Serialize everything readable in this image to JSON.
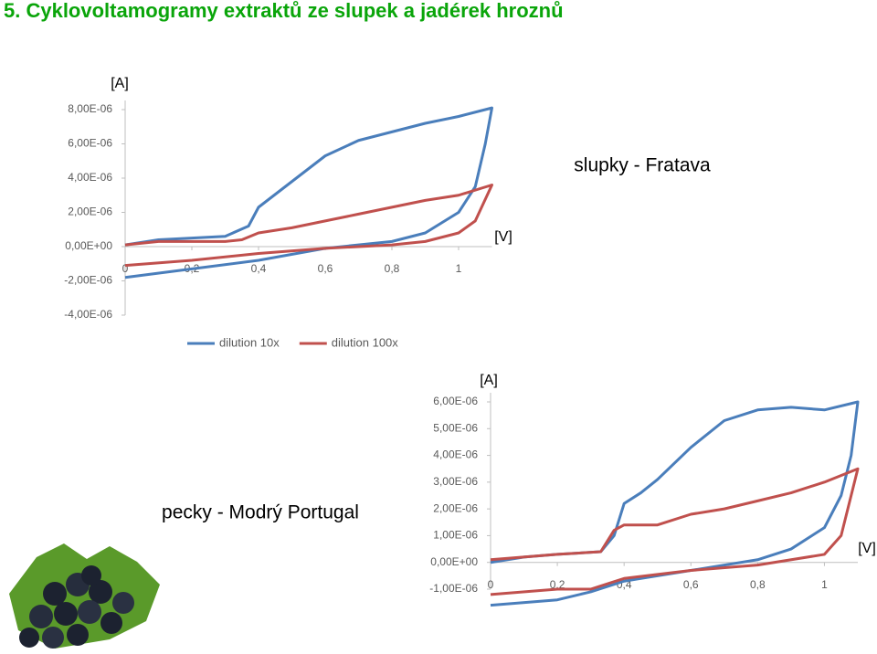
{
  "slide_title": "5. Cyklovoltamogramy extraktů ze slupek a jadérek hroznů",
  "chart_data": [
    {
      "type": "line",
      "title": "slupky - Fratava",
      "y_label": "[A]",
      "x_label": "[V]",
      "xlim": [
        0,
        1.1
      ],
      "ylim": [
        -4e-06,
        8e-06
      ],
      "xticks": [
        0,
        {
          "value": 0.2,
          "label": "0,2"
        },
        {
          "value": 0.4,
          "label": "0,4"
        },
        {
          "value": 0.6,
          "label": "0,6"
        },
        {
          "value": 0.8,
          "label": "0,8"
        },
        1
      ],
      "yticks": [
        {
          "value": 8e-06,
          "label": "8,00E-06"
        },
        {
          "value": 6e-06,
          "label": "6,00E-06"
        },
        {
          "value": 4e-06,
          "label": "4,00E-06"
        },
        {
          "value": 2e-06,
          "label": "2,00E-06"
        },
        {
          "value": 0,
          "label": "0,00E+00"
        },
        {
          "value": -2e-06,
          "label": "-2,00E-06"
        },
        {
          "value": -4e-06,
          "label": "-4,00E-06"
        }
      ],
      "legend": "bottom",
      "series": [
        {
          "name": "dilution 10x",
          "color": "#4a7ebb",
          "x": [
            0,
            0.2,
            0.4,
            0.6,
            0.8,
            0.9,
            1.0,
            1.05,
            1.08,
            1.1,
            1.0,
            0.9,
            0.8,
            0.7,
            0.6,
            0.5,
            0.4,
            0.37,
            0.3,
            0.2,
            0.1,
            0
          ],
          "values": [
            -1.8e-06,
            -1.3e-06,
            -8e-07,
            -1e-07,
            3e-07,
            8e-07,
            2e-06,
            3.5e-06,
            6e-06,
            8.1e-06,
            7.6e-06,
            7.2e-06,
            6.7e-06,
            6.2e-06,
            5.3e-06,
            3.8e-06,
            2.3e-06,
            1.2e-06,
            6e-07,
            5e-07,
            4e-07,
            1e-07
          ]
        },
        {
          "name": "dilution 100x",
          "color": "#c0504d",
          "x": [
            0,
            0.2,
            0.4,
            0.6,
            0.8,
            0.9,
            1.0,
            1.05,
            1.1,
            1.0,
            0.9,
            0.8,
            0.7,
            0.6,
            0.5,
            0.4,
            0.35,
            0.3,
            0.1,
            0
          ],
          "values": [
            -1.1e-06,
            -8e-07,
            -4e-07,
            -1e-07,
            1e-07,
            3e-07,
            8e-07,
            1.5e-06,
            3.6e-06,
            3e-06,
            2.7e-06,
            2.3e-06,
            1.9e-06,
            1.5e-06,
            1.1e-06,
            8e-07,
            4e-07,
            3e-07,
            3e-07,
            1e-07
          ]
        }
      ]
    },
    {
      "type": "line",
      "title": "pecky - Modrý Portugal",
      "y_label": "[A]",
      "x_label": "[V]",
      "xlim": [
        0,
        1.1
      ],
      "ylim": [
        -1e-06,
        6e-06
      ],
      "xticks": [
        0,
        {
          "value": 0.2,
          "label": "0,2"
        },
        {
          "value": 0.4,
          "label": "0,4"
        },
        {
          "value": 0.6,
          "label": "0,6"
        },
        {
          "value": 0.8,
          "label": "0,8"
        },
        1
      ],
      "yticks": [
        {
          "value": 6e-06,
          "label": "6,00E-06"
        },
        {
          "value": 5e-06,
          "label": "5,00E-06"
        },
        {
          "value": 4e-06,
          "label": "4,00E-06"
        },
        {
          "value": 3e-06,
          "label": "3,00E-06"
        },
        {
          "value": 2e-06,
          "label": "2,00E-06"
        },
        {
          "value": 1e-06,
          "label": "1,00E-06"
        },
        {
          "value": 0,
          "label": "0,00E+00"
        },
        {
          "value": -1e-06,
          "label": "-1,00E-06"
        }
      ],
      "series": [
        {
          "color": "#4a7ebb",
          "x": [
            0,
            0.2,
            0.3,
            0.4,
            0.6,
            0.8,
            0.9,
            1.0,
            1.05,
            1.08,
            1.1,
            1.0,
            0.9,
            0.8,
            0.7,
            0.6,
            0.5,
            0.45,
            0.4,
            0.37,
            0.33,
            0.2,
            0.1,
            0
          ],
          "values": [
            -1.6e-06,
            -1.4e-06,
            -1.1e-06,
            -7e-07,
            -3e-07,
            1e-07,
            5e-07,
            1.3e-06,
            2.5e-06,
            4e-06,
            6e-06,
            5.7e-06,
            5.8e-06,
            5.7e-06,
            5.3e-06,
            4.3e-06,
            3.1e-06,
            2.6e-06,
            2.2e-06,
            1e-06,
            4e-07,
            3e-07,
            2e-07,
            0
          ]
        },
        {
          "color": "#c0504d",
          "x": [
            0,
            0.2,
            0.3,
            0.4,
            0.6,
            0.8,
            1.0,
            1.05,
            1.1,
            1.0,
            0.9,
            0.8,
            0.7,
            0.6,
            0.5,
            0.4,
            0.37,
            0.33,
            0.2,
            0
          ],
          "values": [
            -1.2e-06,
            -1e-06,
            -1e-06,
            -6e-07,
            -3e-07,
            -1e-07,
            3e-07,
            1e-06,
            3.5e-06,
            3e-06,
            2.6e-06,
            2.3e-06,
            2e-06,
            1.8e-06,
            1.4e-06,
            1.4e-06,
            1.2e-06,
            4e-07,
            3e-07,
            1e-07
          ]
        }
      ]
    }
  ]
}
